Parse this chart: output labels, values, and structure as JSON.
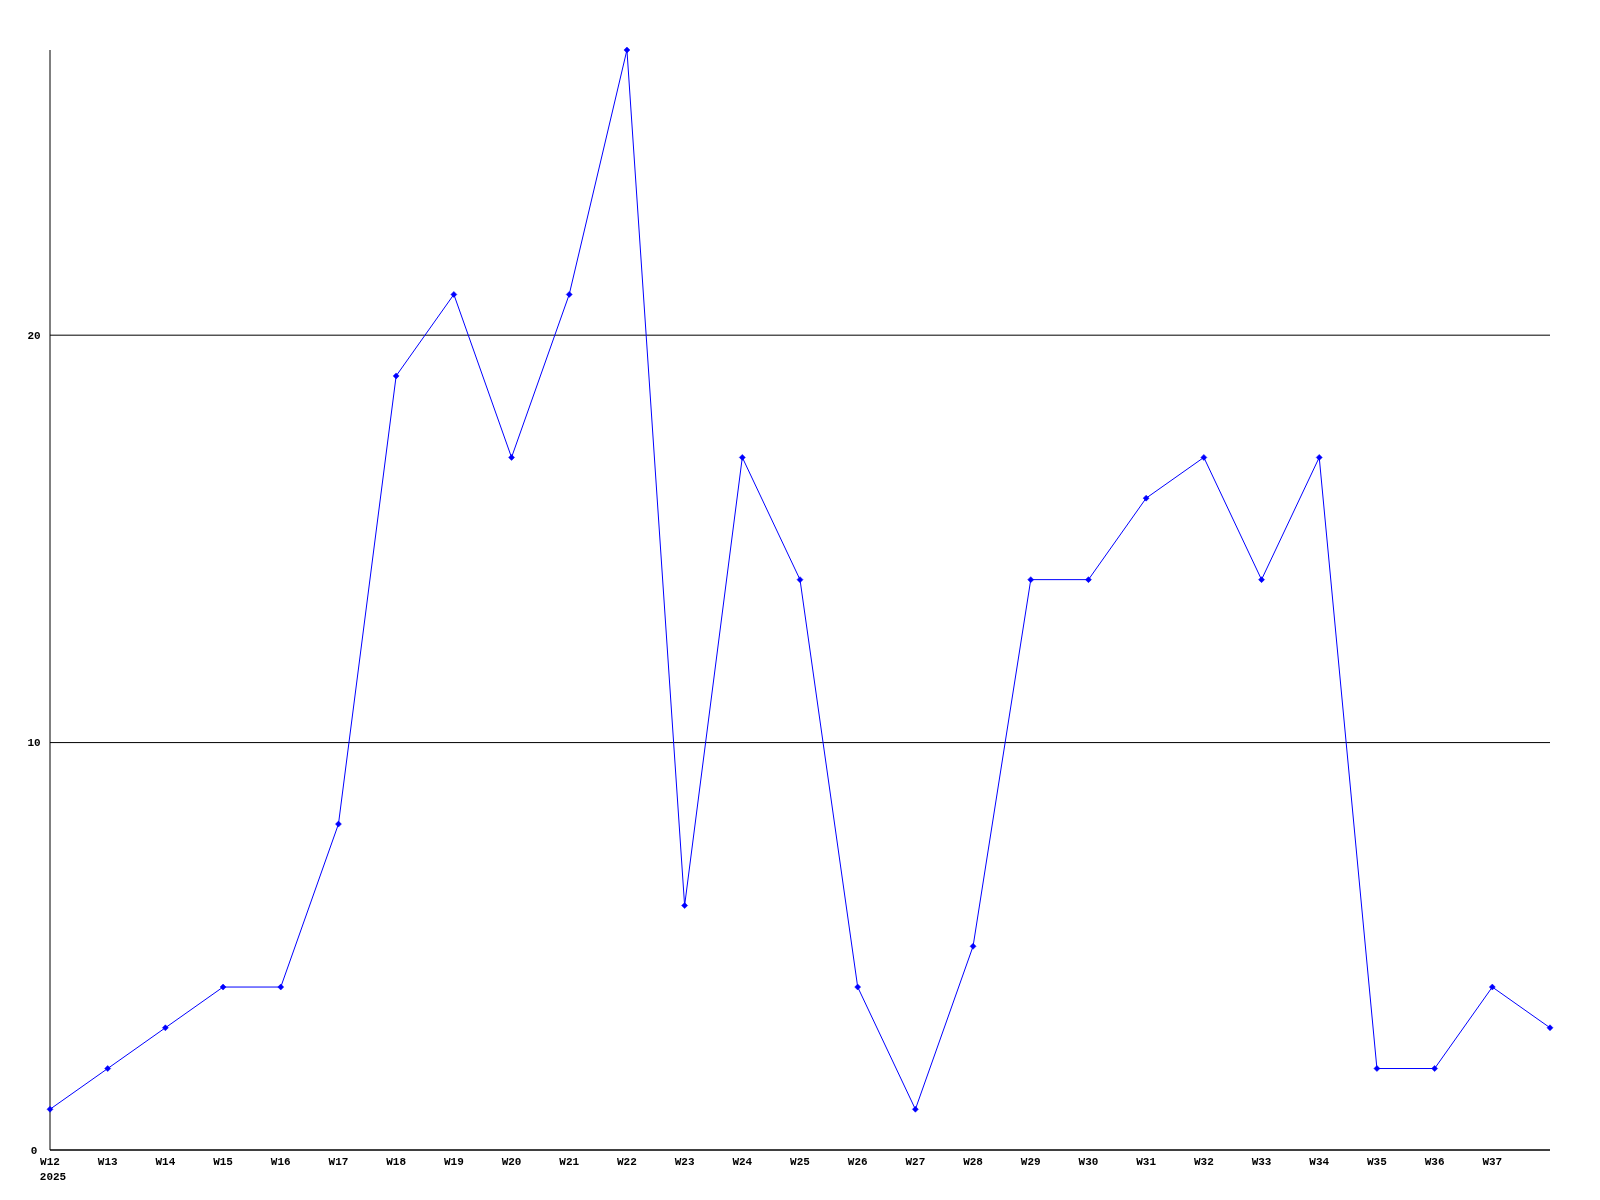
{
  "chart_data": {
    "type": "line",
    "categories": [
      "W12",
      "W13",
      "W14",
      "W15",
      "W16",
      "W17",
      "W18",
      "W19",
      "W20",
      "W21",
      "W22",
      "W23",
      "W24",
      "W25",
      "W26",
      "W27",
      "W28",
      "W29",
      "W30",
      "W31",
      "W32",
      "W33",
      "W34",
      "W35",
      "W36",
      "W37",
      null
    ],
    "series": [
      {
        "color": "#0000ff",
        "values": [
          1,
          2,
          3,
          4,
          4,
          8,
          19,
          21,
          17,
          21,
          27,
          6,
          17,
          14,
          4,
          1,
          5,
          14,
          14,
          16,
          17,
          14,
          17,
          2,
          2,
          4,
          3
        ]
      }
    ],
    "ylim": [
      0,
      27
    ],
    "yticks": [
      0,
      10,
      20
    ],
    "grid": "y",
    "marker": "diamond",
    "line_style": "solid",
    "annotations": [
      "2025"
    ]
  }
}
